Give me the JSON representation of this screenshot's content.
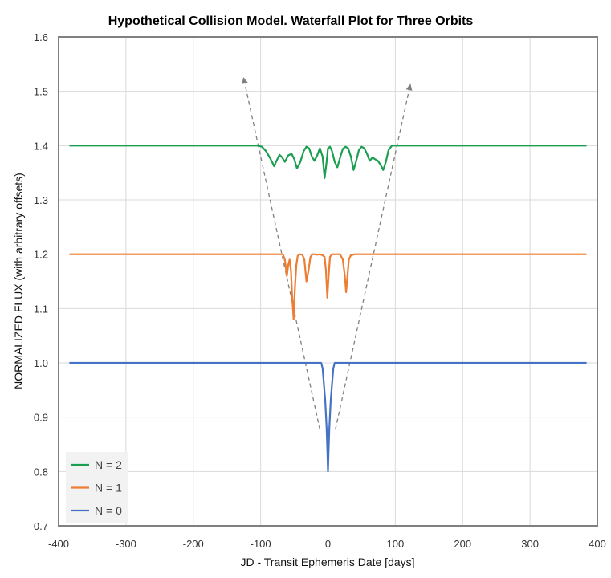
{
  "chart_data": {
    "type": "line",
    "title": "Hypothetical Collision Model. Waterfall Plot for Three Orbits",
    "xlabel": "JD - Transit Ephemeris Date [days]",
    "ylabel": "NORMALIZED FLUX (with arbitrary offsets)",
    "xlim": [
      -400,
      400
    ],
    "ylim": [
      0.7,
      1.6
    ],
    "xticks": [
      "-400",
      "-300",
      "-200",
      "-100",
      "0",
      "100",
      "200",
      "300",
      "400"
    ],
    "xtick_values": [
      -400,
      -300,
      -200,
      -100,
      0,
      100,
      200,
      300,
      400
    ],
    "yticks": [
      "0.7",
      "0.8",
      "0.9",
      "1.0",
      "1.1",
      "1.2",
      "1.3",
      "1.4",
      "1.5",
      "1.6"
    ],
    "ytick_values": [
      0.7,
      0.8,
      0.9,
      1.0,
      1.1,
      1.2,
      1.3,
      1.4,
      1.5,
      1.6
    ],
    "grid": true,
    "legend_position": "bottom-left",
    "series": [
      {
        "name": "N = 2",
        "color": "#1a9e50",
        "x": [
          -383,
          -105,
          -98,
          -92,
          -85,
          -80,
          -76,
          -72,
          -68,
          -64,
          -59,
          -54,
          -50,
          -46,
          -41,
          -36,
          -32,
          -28,
          -24,
          -20,
          -16,
          -12,
          -8,
          -5,
          -2,
          0,
          3,
          6,
          10,
          14,
          18,
          22,
          26,
          30,
          34,
          38,
          42,
          46,
          50,
          54,
          58,
          62,
          66,
          70,
          74,
          78,
          82,
          86,
          90,
          95,
          100,
          383
        ],
        "y": [
          1.4,
          1.4,
          1.398,
          1.39,
          1.375,
          1.362,
          1.373,
          1.383,
          1.378,
          1.37,
          1.382,
          1.385,
          1.375,
          1.358,
          1.37,
          1.39,
          1.398,
          1.395,
          1.38,
          1.372,
          1.382,
          1.395,
          1.38,
          1.34,
          1.37,
          1.395,
          1.398,
          1.39,
          1.37,
          1.36,
          1.378,
          1.394,
          1.398,
          1.395,
          1.38,
          1.355,
          1.372,
          1.392,
          1.398,
          1.395,
          1.385,
          1.372,
          1.378,
          1.375,
          1.372,
          1.365,
          1.355,
          1.37,
          1.392,
          1.4,
          1.4,
          1.4
        ]
      },
      {
        "name": "N = 1",
        "color": "#ed7d31",
        "x": [
          -383,
          -67,
          -64,
          -61,
          -59,
          -57,
          -55,
          -53,
          -51,
          -49,
          -47,
          -45,
          -42,
          -38,
          -35,
          -32,
          -29,
          -26,
          -23,
          -20,
          -16,
          -12,
          -8,
          -5,
          -3,
          -1,
          1,
          3,
          6,
          10,
          14,
          18,
          22,
          25,
          27,
          29,
          31,
          34,
          40,
          383
        ],
        "y": [
          1.2,
          1.2,
          1.19,
          1.16,
          1.18,
          1.19,
          1.17,
          1.12,
          1.08,
          1.14,
          1.18,
          1.197,
          1.2,
          1.199,
          1.19,
          1.15,
          1.17,
          1.195,
          1.2,
          1.2,
          1.199,
          1.2,
          1.198,
          1.195,
          1.17,
          1.12,
          1.16,
          1.195,
          1.2,
          1.2,
          1.2,
          1.2,
          1.19,
          1.16,
          1.13,
          1.16,
          1.19,
          1.198,
          1.2,
          1.2
        ]
      },
      {
        "name": "N = 0",
        "color": "#4472c4",
        "x": [
          -383,
          -10,
          -8,
          -6,
          -4,
          -2,
          -1,
          0,
          1,
          2,
          4,
          6,
          8,
          10,
          383
        ],
        "y": [
          1.0,
          1.0,
          0.99,
          0.96,
          0.93,
          0.88,
          0.84,
          0.8,
          0.84,
          0.88,
          0.93,
          0.96,
          0.99,
          1.0,
          1.0
        ]
      }
    ],
    "annotations": [
      {
        "type": "dashed-arrow",
        "from": [
          -12,
          0.877
        ],
        "to": [
          -125,
          1.523
        ]
      },
      {
        "type": "dashed-arrow",
        "from": [
          11,
          0.877
        ],
        "to": [
          122,
          1.511
        ]
      }
    ]
  }
}
